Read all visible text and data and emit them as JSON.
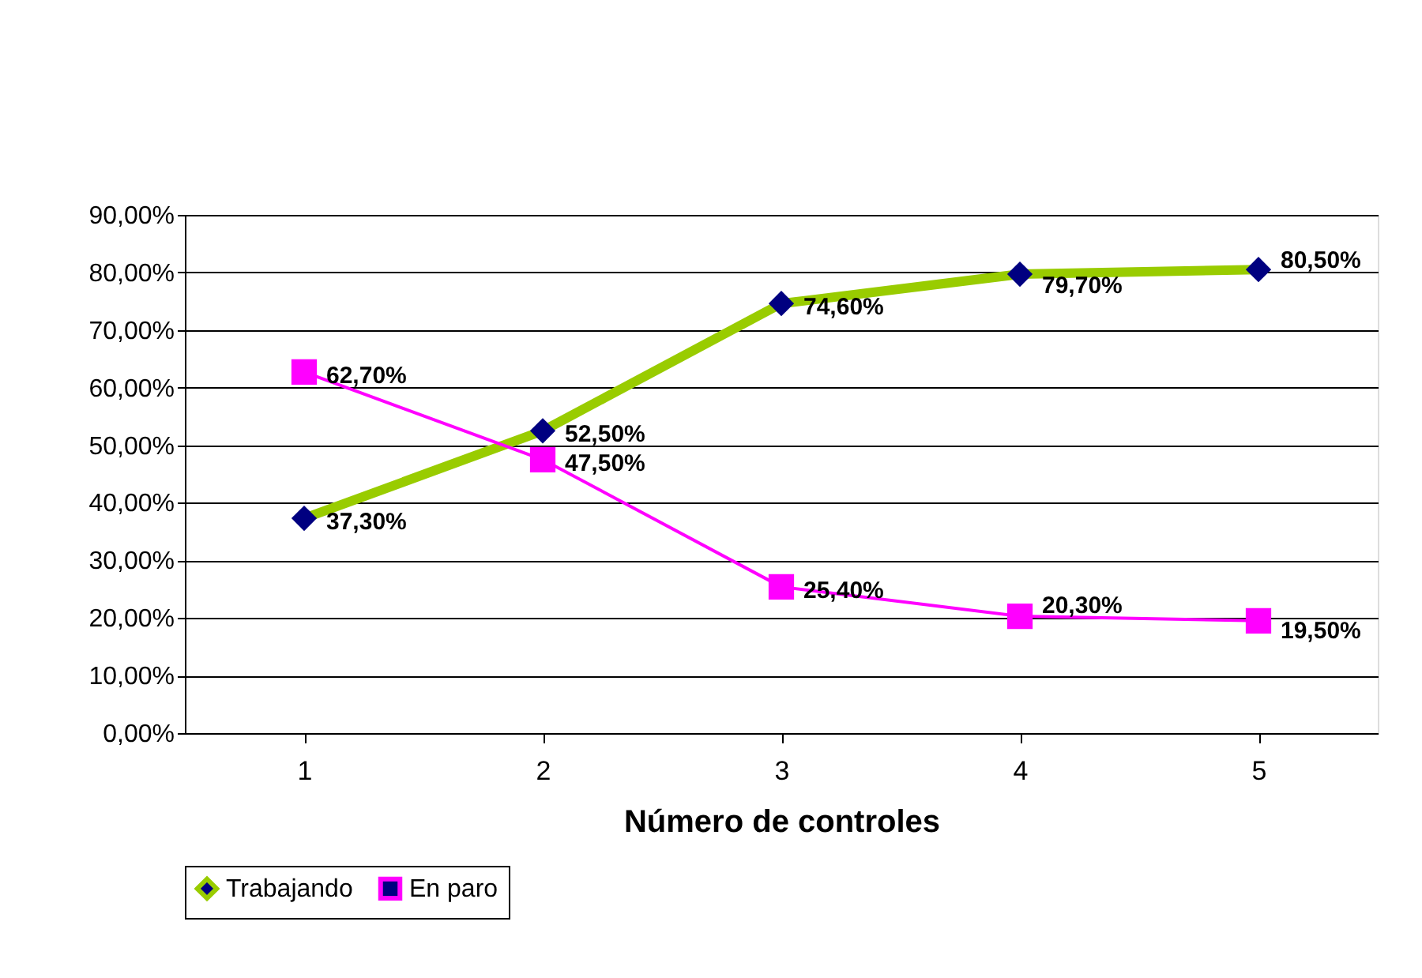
{
  "chart_data": {
    "type": "line",
    "xlabel": "Número de controles",
    "categories": [
      "1",
      "2",
      "3",
      "4",
      "5"
    ],
    "series": [
      {
        "name": "Trabajando",
        "color": "#99cc00",
        "marker": "diamond",
        "values": [
          37.3,
          52.5,
          74.6,
          79.7,
          80.5
        ],
        "value_labels": [
          "37,30%",
          "52,50%",
          "74,60%",
          "79,70%",
          "80,50%"
        ]
      },
      {
        "name": "En paro",
        "color": "#ff00ff",
        "marker": "square",
        "values": [
          62.7,
          47.5,
          25.4,
          20.3,
          19.5
        ],
        "value_labels": [
          "62,70%",
          "47,50%",
          "25,40%",
          "20,30%",
          "19,50%"
        ]
      }
    ],
    "ylim": [
      0,
      90
    ],
    "yticks": [
      {
        "value": 0,
        "label": "0,00%"
      },
      {
        "value": 10,
        "label": "10,00%"
      },
      {
        "value": 20,
        "label": "20,00%"
      },
      {
        "value": 30,
        "label": "30,00%"
      },
      {
        "value": 40,
        "label": "40,00%"
      },
      {
        "value": 50,
        "label": "50,00%"
      },
      {
        "value": 60,
        "label": "60,00%"
      },
      {
        "value": 70,
        "label": "70,00%"
      },
      {
        "value": 80,
        "label": "80,00%"
      },
      {
        "value": 90,
        "label": "90,00%"
      }
    ],
    "grid": "y",
    "legend": "bottom",
    "line_style": "solid"
  }
}
